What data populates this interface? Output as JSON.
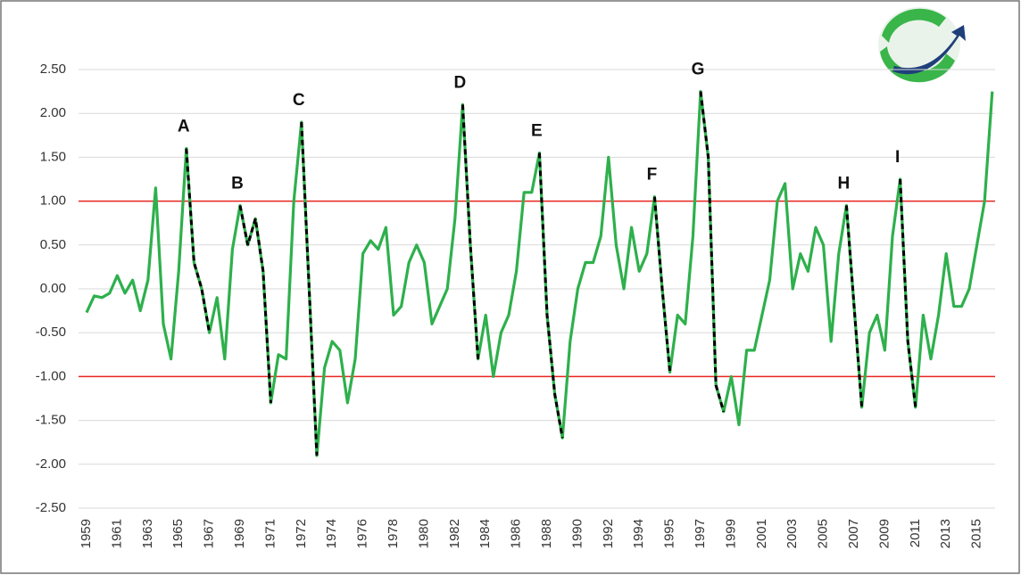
{
  "chart_data": {
    "type": "line",
    "categories": [
      "1959",
      null,
      null,
      null,
      "1961",
      null,
      null,
      null,
      "1963",
      null,
      null,
      null,
      "1965",
      null,
      null,
      null,
      "1967",
      null,
      null,
      null,
      "1969",
      null,
      null,
      null,
      "1971",
      null,
      null,
      null,
      "1972",
      null,
      null,
      null,
      "1974",
      null,
      null,
      null,
      "1976",
      null,
      null,
      null,
      "1978",
      null,
      null,
      null,
      "1980",
      null,
      null,
      null,
      "1982",
      null,
      null,
      null,
      "1984",
      null,
      null,
      null,
      "1986",
      null,
      null,
      null,
      "1988",
      null,
      null,
      null,
      "1990",
      null,
      null,
      null,
      "1992",
      null,
      null,
      null,
      "1994",
      null,
      null,
      null,
      "1995",
      null,
      null,
      null,
      "1997",
      null,
      null,
      null,
      "1999",
      null,
      null,
      null,
      "2001",
      null,
      null,
      null,
      "2003",
      null,
      null,
      null,
      "2005",
      null,
      null,
      null,
      "2007",
      null,
      null,
      null,
      "2009",
      null,
      null,
      null,
      "2011",
      null,
      null,
      null,
      "2013",
      null,
      null,
      null,
      "2015",
      null,
      null
    ],
    "values": [
      -0.27,
      -0.08,
      -0.1,
      -0.05,
      0.15,
      -0.05,
      0.1,
      -0.25,
      0.1,
      1.15,
      -0.4,
      -0.8,
      0.2,
      1.6,
      0.3,
      0.0,
      -0.5,
      -0.1,
      -0.8,
      0.45,
      0.95,
      0.5,
      0.8,
      0.2,
      -1.3,
      -0.75,
      -0.8,
      1.0,
      1.9,
      0.0,
      -1.9,
      -0.9,
      -0.6,
      -0.7,
      -1.3,
      -0.8,
      0.4,
      0.55,
      0.45,
      0.7,
      -0.3,
      -0.2,
      0.3,
      0.5,
      0.3,
      -0.4,
      -0.2,
      0.0,
      0.8,
      2.1,
      0.5,
      -0.8,
      -0.3,
      -1.0,
      -0.5,
      -0.3,
      0.2,
      1.1,
      1.1,
      1.55,
      -0.3,
      -1.2,
      -1.7,
      -0.6,
      0.0,
      0.3,
      0.3,
      0.6,
      1.5,
      0.5,
      0.0,
      0.7,
      0.2,
      0.4,
      1.05,
      0.0,
      -0.95,
      -0.3,
      -0.4,
      0.6,
      2.25,
      1.5,
      -1.1,
      -1.4,
      -1.0,
      -1.55,
      -0.7,
      -0.7,
      -0.3,
      0.1,
      1.0,
      1.2,
      0.0,
      0.4,
      0.2,
      0.7,
      0.5,
      -0.6,
      0.4,
      0.95,
      -0.2,
      -1.35,
      -0.5,
      -0.3,
      -0.7,
      0.6,
      1.25,
      -0.6,
      -1.35,
      -0.3,
      -0.8,
      -0.3,
      0.4,
      -0.2,
      -0.2,
      0.0,
      0.5,
      1.0,
      2.25
    ],
    "color": "#2eb04c",
    "dashed_color": "#000000",
    "dashed_segments": [
      {
        "label": "A",
        "from": 13,
        "to": 16
      },
      {
        "label": "B",
        "from": 20,
        "to": 24
      },
      {
        "label": "C",
        "from": 28,
        "to": 30
      },
      {
        "label": "D",
        "from": 49,
        "to": 51
      },
      {
        "label": "E",
        "from": 59,
        "to": 62
      },
      {
        "label": "F",
        "from": 74,
        "to": 76
      },
      {
        "label": "G",
        "from": 80,
        "to": 83
      },
      {
        "label": "H",
        "from": 99,
        "to": 101
      },
      {
        "label": "I",
        "from": 106,
        "to": 108
      }
    ],
    "reference_lines": [
      1,
      -1
    ],
    "reference_color": "#e8251f",
    "ylim": [
      -2.5,
      2.5
    ],
    "yticks": [
      {
        "value": -2.5,
        "label": "-2.50"
      },
      {
        "value": -2,
        "label": "-2.00"
      },
      {
        "value": -1.5,
        "label": "-1.50"
      },
      {
        "value": -1,
        "label": "-1.00"
      },
      {
        "value": -0.5,
        "label": "-0.50"
      },
      {
        "value": 0,
        "label": "0.00"
      },
      {
        "value": 0.5,
        "label": "0.50"
      },
      {
        "value": 1,
        "label": "1.00"
      },
      {
        "value": 1.5,
        "label": "1.50"
      },
      {
        "value": 2,
        "label": "2.00"
      },
      {
        "value": 2.5,
        "label": "2.50"
      }
    ],
    "grid": true
  }
}
